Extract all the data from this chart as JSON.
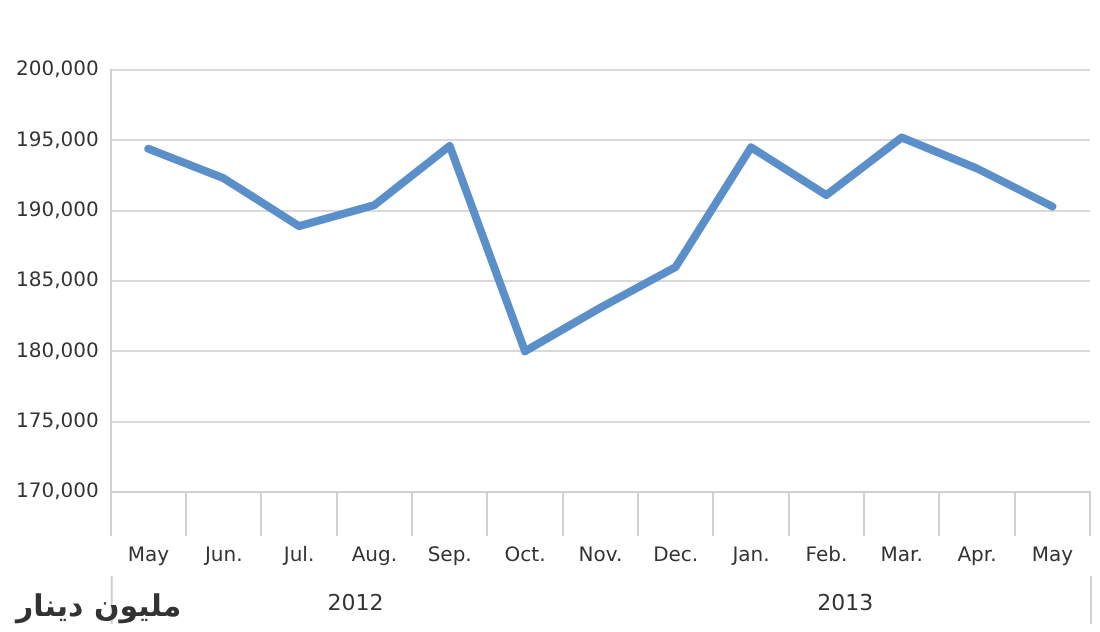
{
  "chart_data": {
    "type": "line",
    "categories": [
      "May",
      "Jun.",
      "Jul.",
      "Aug.",
      "Sep.",
      "Oct.",
      "Nov.",
      "Dec.",
      "Jan.",
      "Feb.",
      "Mar.",
      "Apr.",
      "May"
    ],
    "series": [
      {
        "color": "#5b8fc9",
        "values": [
          194400,
          192300,
          188900,
          190400,
          194600,
          180000,
          183100,
          186000,
          194500,
          191100,
          195200,
          193000,
          190300
        ]
      }
    ],
    "ylim": [
      170000,
      200000
    ],
    "yticks": [
      {
        "value": 170000,
        "label": "170,000"
      },
      {
        "value": 175000,
        "label": "175,000"
      },
      {
        "value": 180000,
        "label": "180,000"
      },
      {
        "value": 185000,
        "label": "185,000"
      },
      {
        "value": 190000,
        "label": "190,000"
      },
      {
        "value": 195000,
        "label": "195,000"
      },
      {
        "value": 200000,
        "label": "200,000"
      }
    ],
    "grid": "y",
    "legend": false,
    "marker": "none",
    "line_style": "solid",
    "annotations": [
      "2012",
      "2013",
      "مليون دينار"
    ]
  }
}
